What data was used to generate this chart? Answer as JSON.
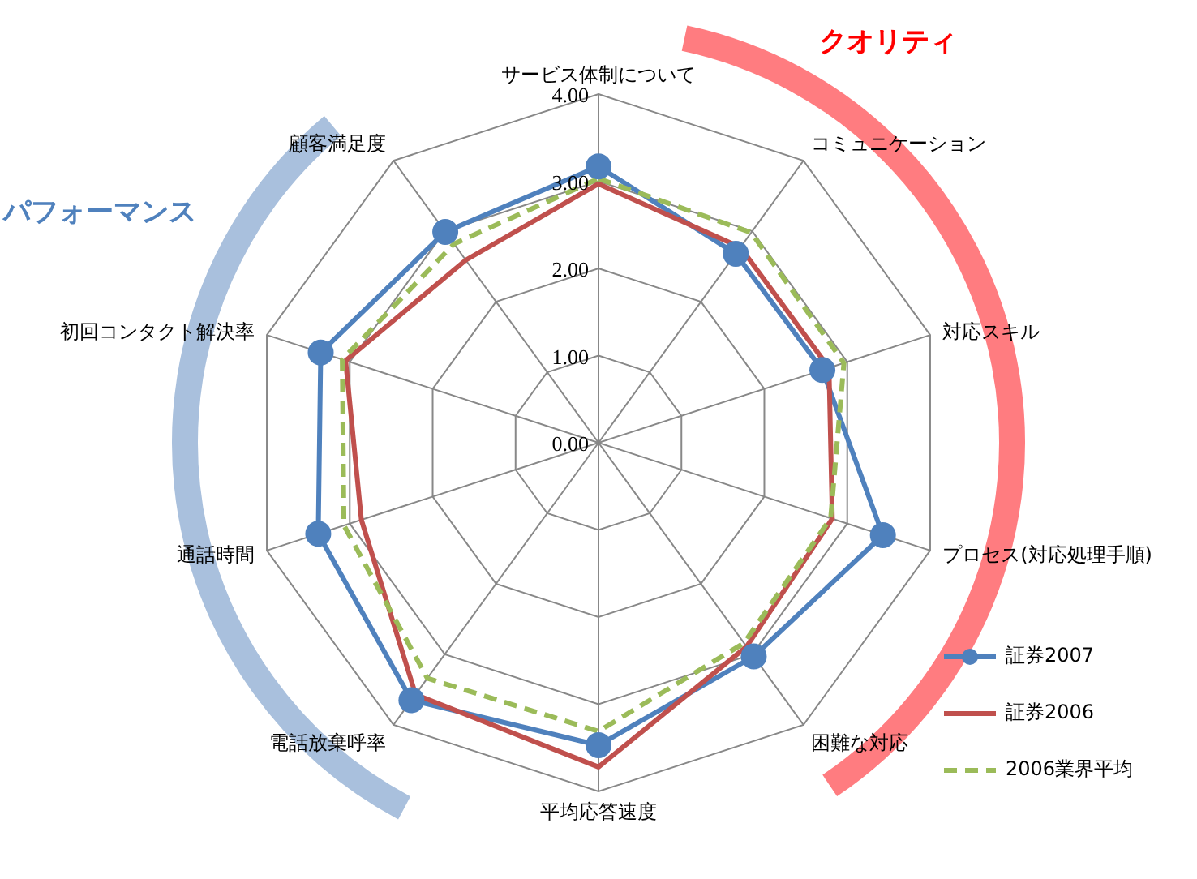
{
  "chart_data": {
    "type": "radar",
    "categories": [
      "サービス体制について",
      "コミュニケーション",
      "対応スキル",
      "プロセス(対応処理手順)",
      "困難な対応",
      "平均応答速度",
      "電話放棄呼率",
      "通話時間",
      "初回コンタクト解決率",
      "顧客満足度"
    ],
    "series": [
      {
        "name": "証券2007",
        "color": "#4f81bd",
        "marker": "circle",
        "line_style": "solid",
        "values": [
          3.17,
          2.68,
          2.7,
          3.43,
          3.03,
          3.47,
          3.65,
          3.38,
          3.35,
          2.99
        ]
      },
      {
        "name": "証券2006",
        "color": "#c0504d",
        "marker": "none",
        "line_style": "solid",
        "values": [
          2.97,
          2.77,
          2.78,
          2.82,
          2.89,
          3.72,
          3.57,
          2.86,
          3.05,
          2.59
        ]
      },
      {
        "name": "2006業界平均",
        "color": "#9bbb59",
        "marker": "none",
        "line_style": "dashed",
        "values": [
          3.03,
          2.98,
          2.96,
          2.8,
          2.84,
          3.31,
          3.34,
          3.07,
          3.09,
          2.82
        ]
      }
    ],
    "ylim": [
      0,
      4
    ],
    "yticks": [
      {
        "value": 0,
        "label": "0.00"
      },
      {
        "value": 1,
        "label": "1.00"
      },
      {
        "value": 2,
        "label": "2.00"
      },
      {
        "value": 3,
        "label": "3.00"
      },
      {
        "value": 4,
        "label": "4.00"
      }
    ],
    "grid": true,
    "legend": "bottom right",
    "annotations": [
      "クオリティ",
      "パフォーマンス"
    ]
  }
}
